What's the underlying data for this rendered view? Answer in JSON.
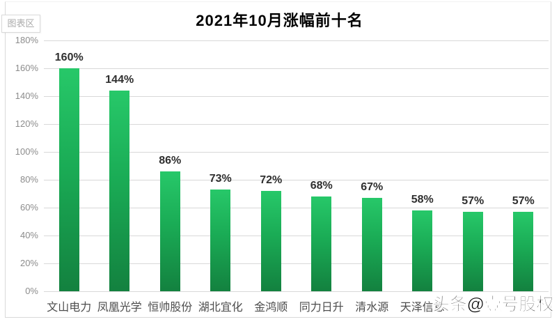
{
  "tooltip_label": "图表区",
  "watermark": "头条@壹号股权",
  "colors": {
    "bar_gradient_top": "#27c869",
    "bar_gradient_bottom": "#13813f",
    "gridline": "#d8d8d8",
    "y_tick_label": "#8c8c8c",
    "value_label": "#2f2f2f",
    "category_label": "#4d4d4d",
    "title": "#000000"
  },
  "chart_data": {
    "type": "bar",
    "title": "2021年10月涨幅前十名",
    "categories": [
      "文山电力",
      "凤凰光学",
      "恒帅股份",
      "湖北宜化",
      "金鸿顺",
      "同力日升",
      "清水源",
      "天泽信息",
      "",
      ""
    ],
    "values": [
      160,
      144,
      86,
      73,
      72,
      68,
      67,
      58,
      57,
      57
    ],
    "value_labels": [
      "160%",
      "144%",
      "86%",
      "73%",
      "72%",
      "68%",
      "67%",
      "58%",
      "57%",
      "57%"
    ],
    "xlabel": "",
    "ylabel": "",
    "ylim": [
      0,
      180
    ],
    "ytick_step": 20,
    "ytick_labels": [
      "0%",
      "20%",
      "40%",
      "60%",
      "80%",
      "100%",
      "120%",
      "140%",
      "160%",
      "180%"
    ],
    "grid": true,
    "legend_position": "none",
    "note": "categories 9 and 10 are obscured by the watermark in the source image"
  }
}
